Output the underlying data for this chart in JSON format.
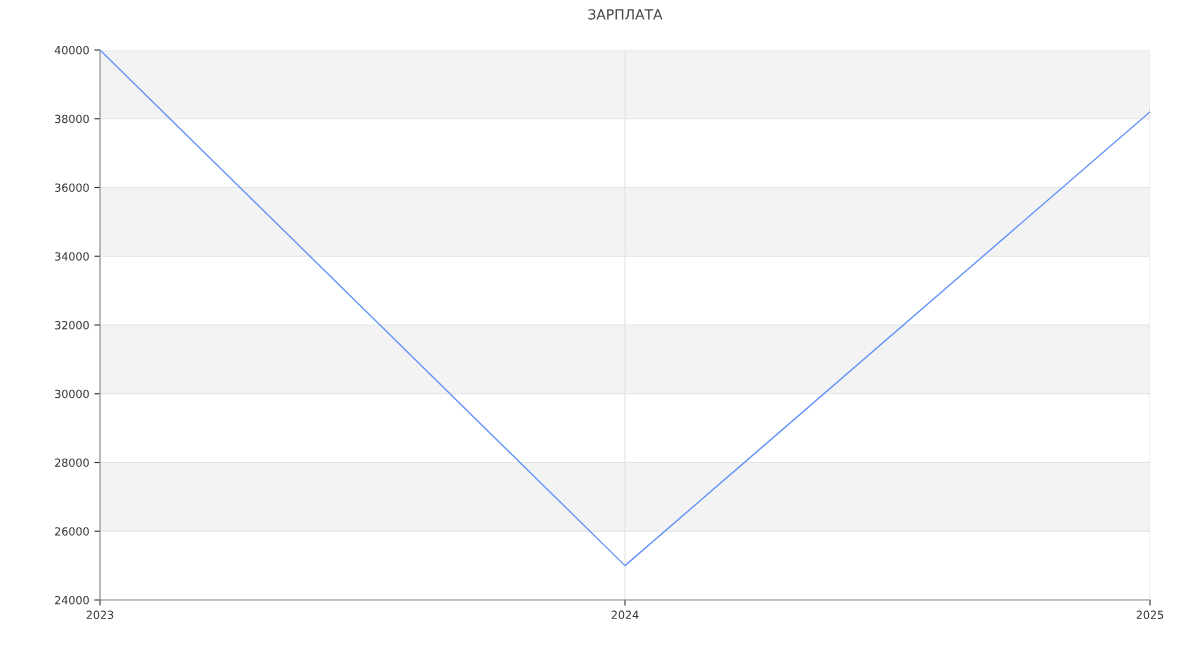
{
  "chart_data": {
    "type": "line",
    "title": "ЗАРПЛАТА",
    "x": [
      2023,
      2024,
      2025
    ],
    "series": [
      {
        "color": "#6395f9",
        "values": [
          40000,
          25000,
          38200
        ]
      }
    ],
    "xlim": [
      2023,
      2025
    ],
    "xticks": [
      2023,
      2024,
      2025
    ],
    "ylim": [
      24000,
      40000
    ],
    "yticks": [
      24000,
      26000,
      28000,
      30000,
      32000,
      34000,
      36000,
      38000,
      40000
    ],
    "grid": true,
    "marker": "none",
    "line_style": "solid",
    "bands": [
      {
        "axis": "y",
        "from": 38000,
        "to": 40000,
        "color": "#f3f3f3"
      },
      {
        "axis": "y",
        "from": 34000,
        "to": 36000,
        "color": "#f3f3f3"
      },
      {
        "axis": "y",
        "from": 30000,
        "to": 32000,
        "color": "#f3f3f3"
      },
      {
        "axis": "y",
        "from": 26000,
        "to": 28000,
        "color": "#f3f3f3"
      }
    ]
  }
}
